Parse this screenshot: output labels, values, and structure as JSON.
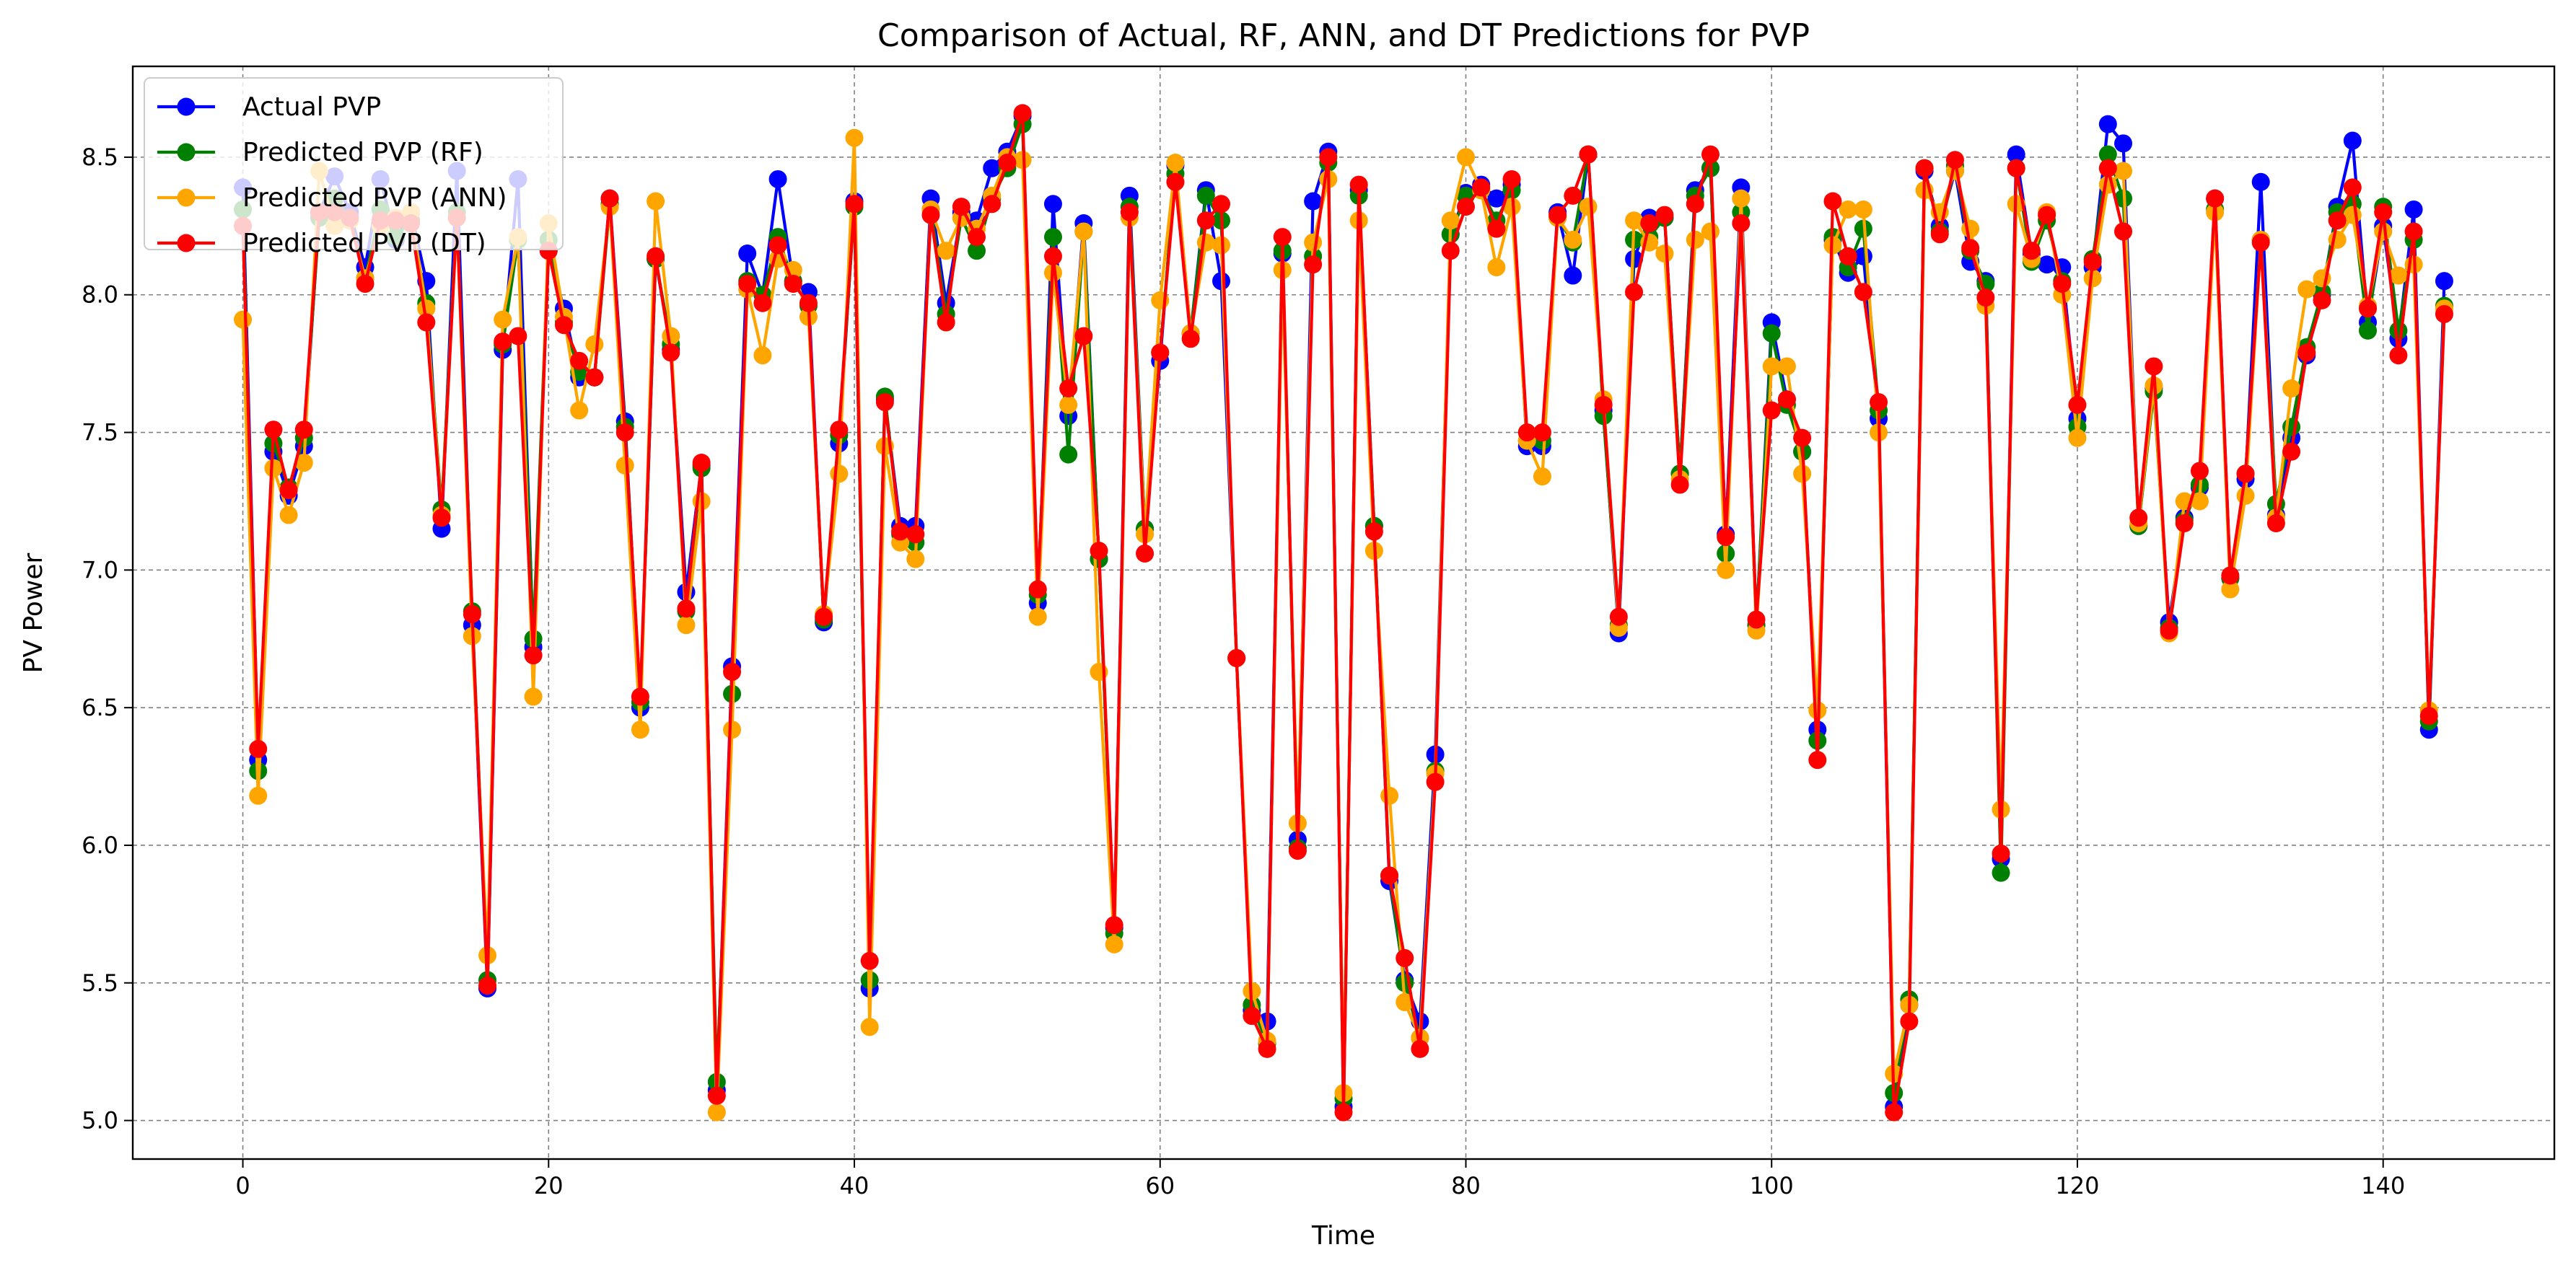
{
  "chart_data": {
    "type": "line",
    "title": "Comparison of Actual, RF, ANN, and DT Predictions for PVP",
    "xlabel": "Time",
    "ylabel": "PV Power",
    "xlim": [
      -7.2,
      151.2
    ],
    "ylim": [
      4.86,
      8.83
    ],
    "xticks": [
      0,
      20,
      40,
      60,
      80,
      100,
      120,
      140
    ],
    "yticks": [
      5.0,
      5.5,
      6.0,
      6.5,
      7.0,
      7.5,
      8.0,
      8.5
    ],
    "grid": true,
    "legend_position": "top-left",
    "series": [
      {
        "name": "Actual PVP",
        "color": "#0000ff",
        "values": [
          8.39,
          6.31,
          7.43,
          7.27,
          7.45,
          8.3,
          8.43,
          8.3,
          8.1,
          8.42,
          8.2,
          8.3,
          8.05,
          7.15,
          8.45,
          6.8,
          5.48,
          7.8,
          8.42,
          6.72,
          8.16,
          7.95,
          7.7,
          7.7,
          8.35,
          7.54,
          6.5,
          8.13,
          7.8,
          6.92,
          7.38,
          5.11,
          6.65,
          8.15,
          8.0,
          8.42,
          8.05,
          8.01,
          6.81,
          7.46,
          8.34,
          5.48,
          7.62,
          7.16,
          7.16,
          8.35,
          7.97,
          8.3,
          8.27,
          8.46,
          8.52,
          8.65,
          6.88,
          8.33,
          7.56,
          8.26,
          7.04,
          5.7,
          8.36,
          7.15,
          7.76,
          8.47,
          7.86,
          8.38,
          8.05,
          6.68,
          5.4,
          5.36,
          8.15,
          6.02,
          8.34,
          8.52,
          5.05,
          8.38,
          7.16,
          5.87,
          5.51,
          5.36,
          6.33,
          8.22,
          8.37,
          8.4,
          8.35,
          8.4,
          7.45,
          7.45,
          8.3,
          8.07,
          8.51,
          7.58,
          6.77,
          8.13,
          8.28,
          8.28,
          7.35,
          8.38,
          8.46,
          7.13,
          8.39,
          6.8,
          7.9,
          7.62,
          7.43,
          6.42,
          8.2,
          8.08,
          8.14,
          7.55,
          5.05,
          5.42,
          8.45,
          8.25,
          8.45,
          8.12,
          8.05,
          5.95,
          8.51,
          8.15,
          8.11,
          8.1,
          7.55,
          8.1,
          8.62,
          8.55,
          7.16,
          7.66,
          6.81,
          7.19,
          7.3,
          8.35,
          6.97,
          7.33,
          8.41,
          7.2,
          7.48,
          7.78,
          8.0,
          8.32,
          8.56,
          7.9,
          8.25,
          7.84,
          8.31,
          6.42,
          8.05
        ]
      },
      {
        "name": "Predicted PVP (RF)",
        "color": "#008000",
        "values": [
          8.31,
          6.27,
          7.46,
          7.3,
          7.48,
          8.28,
          8.35,
          8.28,
          8.06,
          8.31,
          8.21,
          8.27,
          7.97,
          7.22,
          8.3,
          6.85,
          5.51,
          7.82,
          8.2,
          6.75,
          8.2,
          7.9,
          7.72,
          7.7,
          8.33,
          7.52,
          6.52,
          8.13,
          7.82,
          6.85,
          7.37,
          5.14,
          6.55,
          8.05,
          8.0,
          8.21,
          8.05,
          7.96,
          6.82,
          7.49,
          8.32,
          5.51,
          7.63,
          7.13,
          7.1,
          8.31,
          7.93,
          8.28,
          8.16,
          8.35,
          8.46,
          8.62,
          6.91,
          8.21,
          7.42,
          8.23,
          7.04,
          5.68,
          8.32,
          7.15,
          7.79,
          8.44,
          7.86,
          8.36,
          8.27,
          6.68,
          5.42,
          5.28,
          8.16,
          5.99,
          8.14,
          8.48,
          5.08,
          8.36,
          7.16,
          5.89,
          5.5,
          5.3,
          6.27,
          8.22,
          8.36,
          8.38,
          8.27,
          8.38,
          7.47,
          7.47,
          8.28,
          8.19,
          8.51,
          7.56,
          6.8,
          8.2,
          8.21,
          8.28,
          7.35,
          8.36,
          8.46,
          7.06,
          8.3,
          6.8,
          7.86,
          7.6,
          7.43,
          6.38,
          8.21,
          8.1,
          8.24,
          7.58,
          5.1,
          5.44,
          8.46,
          8.23,
          8.47,
          8.16,
          8.04,
          5.9,
          8.46,
          8.12,
          8.27,
          8.05,
          7.52,
          8.13,
          8.51,
          8.35,
          7.16,
          7.65,
          6.79,
          7.18,
          7.31,
          8.31,
          6.97,
          7.35,
          8.2,
          7.24,
          7.52,
          7.81,
          8.01,
          8.3,
          8.33,
          7.87,
          8.32,
          7.87,
          8.2,
          6.45,
          7.96
        ]
      },
      {
        "name": "Predicted PVP (ANN)",
        "color": "#ffa500",
        "values": [
          7.91,
          6.18,
          7.37,
          7.2,
          7.39,
          8.45,
          8.25,
          8.27,
          8.06,
          8.25,
          8.28,
          8.3,
          7.95,
          7.2,
          8.28,
          6.76,
          5.6,
          7.91,
          8.21,
          6.54,
          8.26,
          7.92,
          7.58,
          7.82,
          8.32,
          7.38,
          6.42,
          8.34,
          7.85,
          6.8,
          7.25,
          5.03,
          6.42,
          8.02,
          7.78,
          8.13,
          8.09,
          7.92,
          6.84,
          7.35,
          8.57,
          5.34,
          7.45,
          7.1,
          7.04,
          8.31,
          8.16,
          8.28,
          8.24,
          8.36,
          8.5,
          8.49,
          6.83,
          8.08,
          7.6,
          8.23,
          6.63,
          5.64,
          8.28,
          7.13,
          7.98,
          8.48,
          7.86,
          8.19,
          8.18,
          6.68,
          5.47,
          5.29,
          8.09,
          6.08,
          8.19,
          8.42,
          5.1,
          8.27,
          7.07,
          6.18,
          5.43,
          5.3,
          6.26,
          8.27,
          8.5,
          8.38,
          8.1,
          8.32,
          7.47,
          7.34,
          8.28,
          8.2,
          8.32,
          7.62,
          6.79,
          8.27,
          8.19,
          8.15,
          7.33,
          8.2,
          8.23,
          7.0,
          8.35,
          6.78,
          7.74,
          7.74,
          7.35,
          6.49,
          8.18,
          8.31,
          8.31,
          7.5,
          5.17,
          5.42,
          8.38,
          8.3,
          8.45,
          8.24,
          7.96,
          6.13,
          8.33,
          8.13,
          8.3,
          8.0,
          7.48,
          8.06,
          8.4,
          8.45,
          7.17,
          7.67,
          6.77,
          7.25,
          7.25,
          8.3,
          6.93,
          7.27,
          8.2,
          7.19,
          7.66,
          8.02,
          8.06,
          8.2,
          8.29,
          7.96,
          8.23,
          8.07,
          8.11,
          6.49,
          7.95
        ]
      },
      {
        "name": "Predicted PVP (DT)",
        "color": "#ff0000",
        "values": [
          8.25,
          6.35,
          7.51,
          7.29,
          7.51,
          8.3,
          8.3,
          8.28,
          8.04,
          8.27,
          8.27,
          8.26,
          7.9,
          7.19,
          8.28,
          6.84,
          5.49,
          7.83,
          7.85,
          6.69,
          8.16,
          7.89,
          7.76,
          7.7,
          8.35,
          7.5,
          6.54,
          8.14,
          7.79,
          6.86,
          7.39,
          5.09,
          6.63,
          8.04,
          7.97,
          8.18,
          8.04,
          7.97,
          6.83,
          7.51,
          8.33,
          5.58,
          7.61,
          7.14,
          7.13,
          8.29,
          7.9,
          8.32,
          8.21,
          8.33,
          8.48,
          8.66,
          6.93,
          8.14,
          7.66,
          7.85,
          7.07,
          5.71,
          8.3,
          7.06,
          7.79,
          8.41,
          7.84,
          8.27,
          8.33,
          6.68,
          5.38,
          5.26,
          8.21,
          5.98,
          8.11,
          8.5,
          5.03,
          8.4,
          7.14,
          5.89,
          5.59,
          5.26,
          6.23,
          8.16,
          8.32,
          8.39,
          8.24,
          8.42,
          7.5,
          7.5,
          8.29,
          8.36,
          8.51,
          7.6,
          6.83,
          8.01,
          8.26,
          8.29,
          7.31,
          8.33,
          8.51,
          7.12,
          8.26,
          6.82,
          7.58,
          7.62,
          7.48,
          6.31,
          8.34,
          8.14,
          8.01,
          7.61,
          5.03,
          5.36,
          8.46,
          8.22,
          8.49,
          8.17,
          7.99,
          5.97,
          8.46,
          8.16,
          8.29,
          8.04,
          7.6,
          8.12,
          8.46,
          8.23,
          7.19,
          7.74,
          6.78,
          7.17,
          7.36,
          8.35,
          6.98,
          7.35,
          8.19,
          7.17,
          7.43,
          7.79,
          7.98,
          8.27,
          8.39,
          7.95,
          8.3,
          7.78,
          8.23,
          6.47,
          7.93
        ]
      }
    ]
  }
}
